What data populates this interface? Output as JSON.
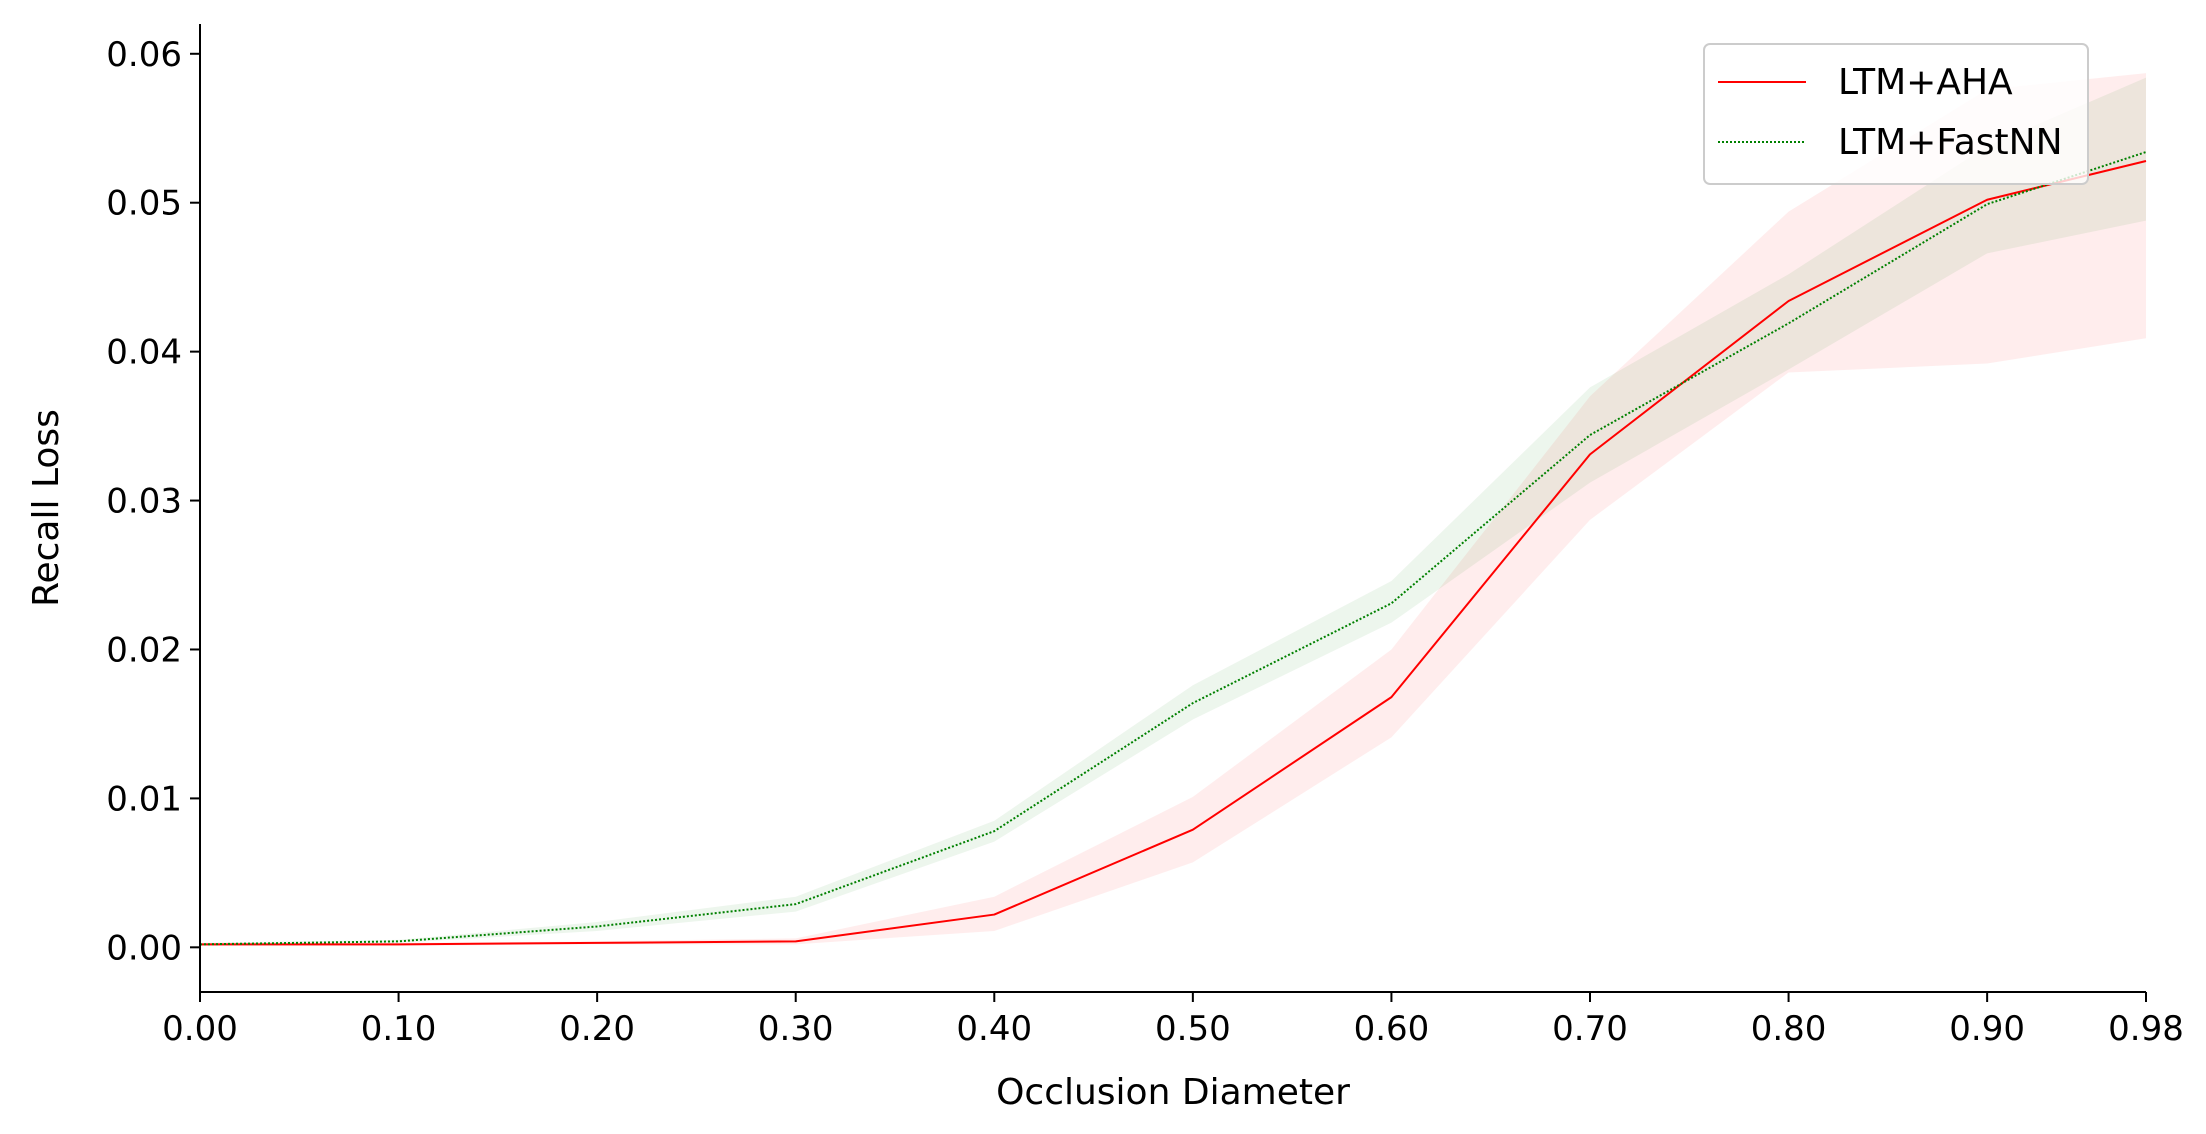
{
  "chart_data": {
    "type": "line",
    "xlabel": "Occlusion Diameter",
    "ylabel": "Recall Loss",
    "xlim": [
      0,
      0.98
    ],
    "ylim": [
      -0.003,
      0.062
    ],
    "x_ticks": [
      "0.00",
      "0.10",
      "0.20",
      "0.30",
      "0.40",
      "0.50",
      "0.60",
      "0.70",
      "0.80",
      "0.90",
      "0.98"
    ],
    "x_tick_values": [
      0,
      0.1,
      0.2,
      0.3,
      0.4,
      0.5,
      0.6,
      0.7,
      0.8,
      0.9,
      0.98
    ],
    "y_ticks": [
      "0.00",
      "0.01",
      "0.02",
      "0.03",
      "0.04",
      "0.05",
      "0.06"
    ],
    "y_tick_values": [
      0,
      0.01,
      0.02,
      0.03,
      0.04,
      0.05,
      0.06
    ],
    "grid": false,
    "legend_position": "top-right",
    "x": [
      0,
      0.1,
      0.2,
      0.3,
      0.4,
      0.5,
      0.6,
      0.7,
      0.8,
      0.9,
      0.98
    ],
    "series": [
      {
        "name": "LTM+AHA",
        "color": "#ff0000",
        "line_style": "solid",
        "values": [
          0.0002,
          0.0002,
          0.0003,
          0.0004,
          0.0022,
          0.0079,
          0.0168,
          0.0331,
          0.0434,
          0.0502,
          0.0528
        ],
        "lower": [
          0.0001,
          0.0001,
          0.0002,
          0.0002,
          0.0011,
          0.0057,
          0.0141,
          0.0287,
          0.0386,
          0.0392,
          0.0409
        ],
        "upper": [
          0.0003,
          0.0003,
          0.0004,
          0.0006,
          0.0034,
          0.0101,
          0.02,
          0.037,
          0.0494,
          0.0576,
          0.0587
        ]
      },
      {
        "name": "LTM+FastNN",
        "color": "#008000",
        "line_style": "dotted",
        "values": [
          0.0002,
          0.0004,
          0.0014,
          0.0029,
          0.0078,
          0.0164,
          0.0231,
          0.0344,
          0.0419,
          0.0499,
          0.0534
        ],
        "lower": [
          0.0001,
          0.0003,
          0.0011,
          0.0024,
          0.0071,
          0.0153,
          0.0218,
          0.0312,
          0.0388,
          0.0466,
          0.0488
        ],
        "upper": [
          0.0003,
          0.0005,
          0.0017,
          0.0034,
          0.0085,
          0.0176,
          0.0246,
          0.0376,
          0.0452,
          0.0538,
          0.0584
        ]
      }
    ]
  }
}
